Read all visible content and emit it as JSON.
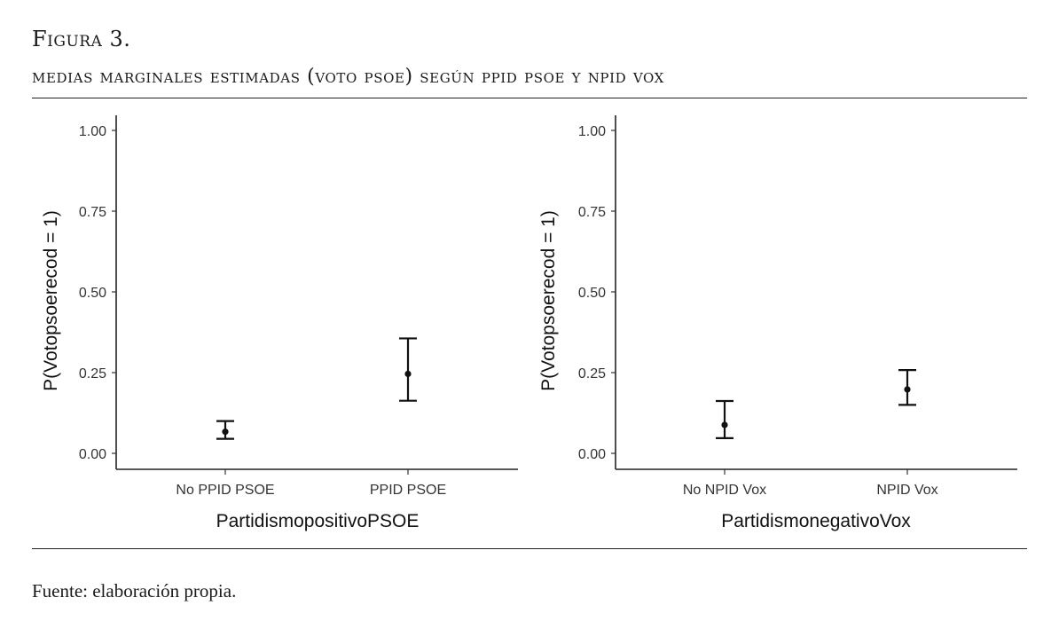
{
  "figure": {
    "label": "Figura 3.",
    "title": "medias marginales estimadas (voto psoe) según ppid psoe y npid vox",
    "source": "Fuente: elaboración propia."
  },
  "chart_data": [
    {
      "type": "scatter",
      "xlabel": "PartidismopositivoPSOE",
      "ylabel": "P(Votopsoerecod = 1)",
      "categories": [
        "No PPID PSOE",
        "PPID PSOE"
      ],
      "values": [
        0.067,
        0.246
      ],
      "ci_lower": [
        0.045,
        0.163
      ],
      "ci_upper": [
        0.1,
        0.356
      ],
      "ylim": [
        0,
        1
      ],
      "yticks": [
        "0.00",
        "0.25",
        "0.50",
        "0.75",
        "1.00"
      ],
      "grid": false
    },
    {
      "type": "scatter",
      "xlabel": "PartidismonegativoVox",
      "ylabel": "P(Votopsoerecod = 1)",
      "categories": [
        "No NPID Vox",
        "NPID Vox"
      ],
      "values": [
        0.088,
        0.198
      ],
      "ci_lower": [
        0.047,
        0.15
      ],
      "ci_upper": [
        0.162,
        0.258
      ],
      "ylim": [
        0,
        1
      ],
      "yticks": [
        "0.00",
        "0.25",
        "0.50",
        "0.75",
        "1.00"
      ],
      "grid": false
    }
  ]
}
